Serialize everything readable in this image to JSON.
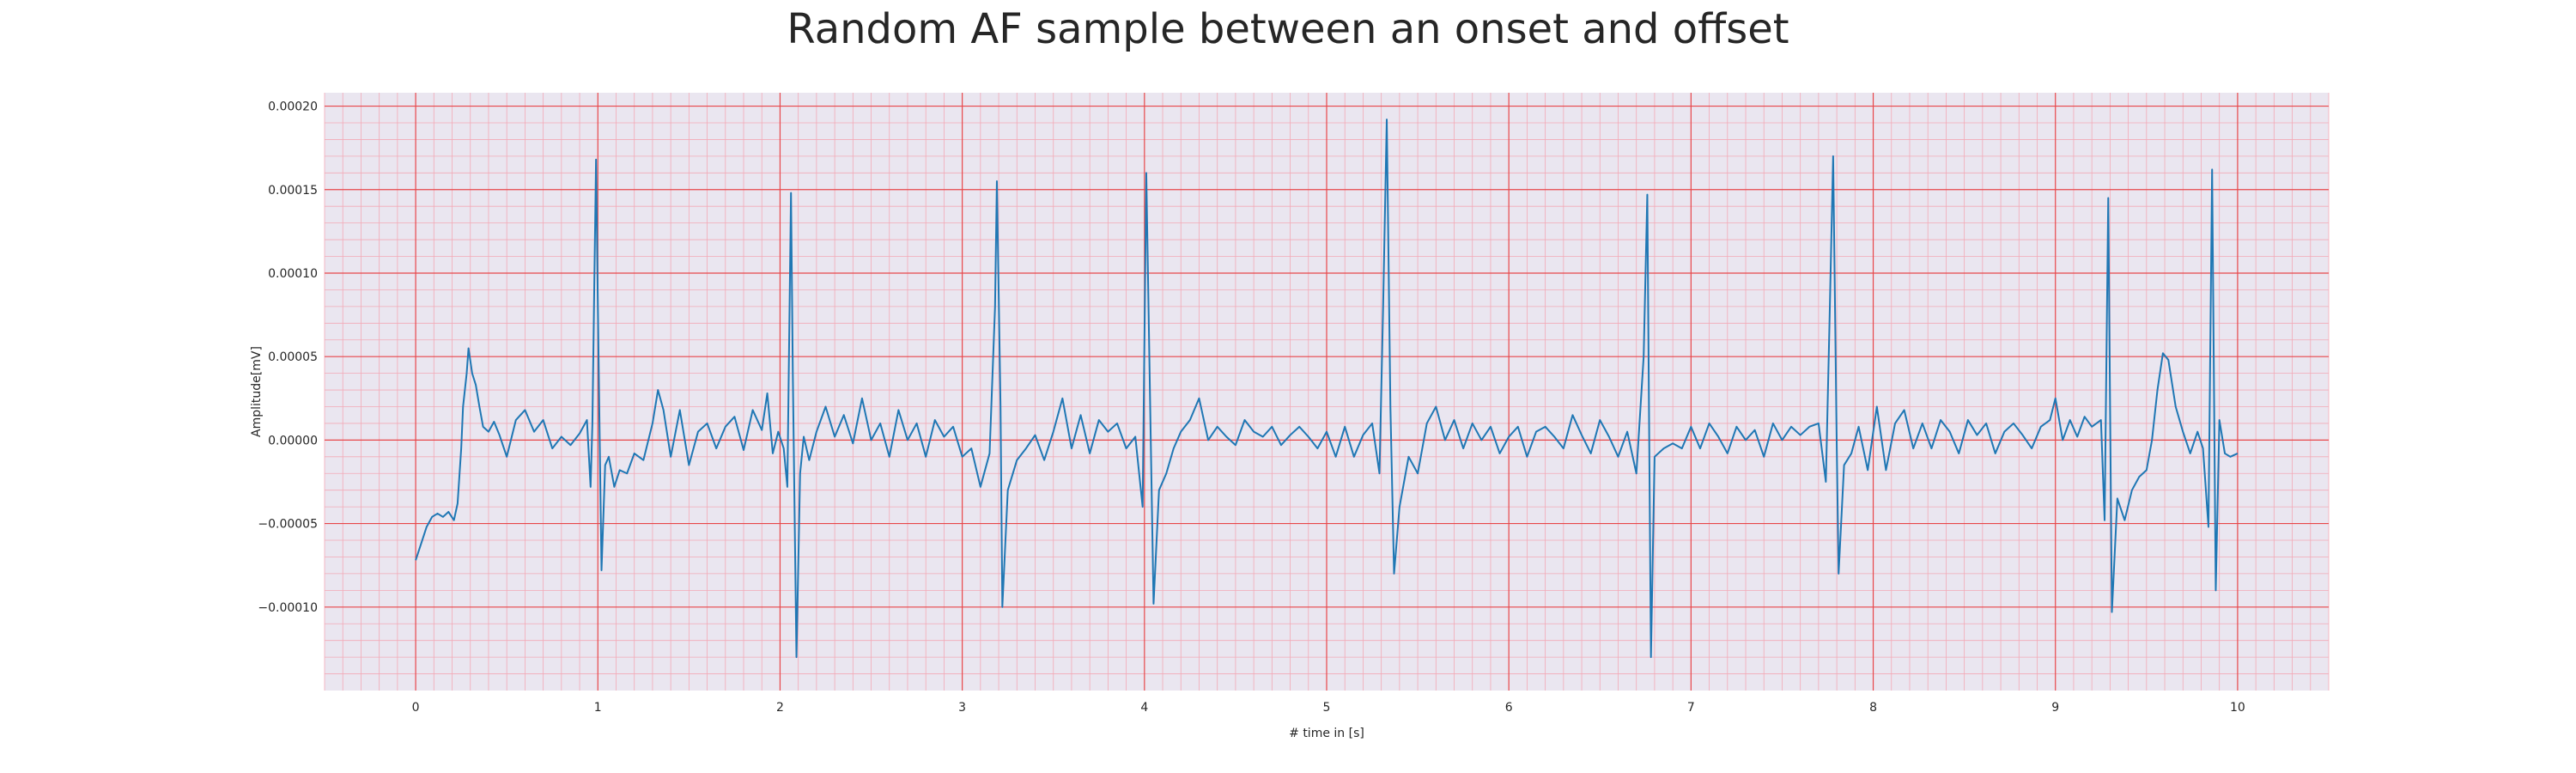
{
  "chart_data": {
    "type": "line",
    "title": "Random AF sample between an onset and offset",
    "xlabel": "# time in [s]",
    "ylabel": "Amplitude[mV]",
    "xlim": [
      -0.5,
      10.5
    ],
    "ylim": [
      -0.00015,
      0.000208
    ],
    "x_ticks": [
      0,
      1,
      2,
      3,
      4,
      5,
      6,
      7,
      8,
      9,
      10
    ],
    "y_ticks": [
      -0.0001,
      -5e-05,
      0.0,
      5e-05,
      0.0001,
      0.00015,
      0.0002
    ],
    "y_tick_labels": [
      "−0.00010",
      "−0.00005",
      "0.00000",
      "0.00005",
      "0.00010",
      "0.00015",
      "0.00020"
    ],
    "x_tick_labels": [
      "0",
      "1",
      "2",
      "3",
      "4",
      "5",
      "6",
      "7",
      "8",
      "9",
      "10"
    ],
    "grid": true,
    "background_color": "#eae6f0",
    "major_grid_color": "#e8474a",
    "minor_grid_color": "#f3a9b6",
    "line_color": "#1f77b4",
    "series": [
      {
        "name": "",
        "points": [
          [
            0.0,
            -7.2e-05
          ],
          [
            0.03,
            -6.2e-05
          ],
          [
            0.06,
            -5.2e-05
          ],
          [
            0.09,
            -4.6e-05
          ],
          [
            0.12,
            -4.4e-05
          ],
          [
            0.15,
            -4.6e-05
          ],
          [
            0.18,
            -4.3e-05
          ],
          [
            0.21,
            -4.8e-05
          ],
          [
            0.23,
            -3.8e-05
          ],
          [
            0.25,
            -5e-06
          ],
          [
            0.26,
            2e-05
          ],
          [
            0.28,
            4e-05
          ],
          [
            0.29,
            5.5e-05
          ],
          [
            0.31,
            4e-05
          ],
          [
            0.33,
            3.3e-05
          ],
          [
            0.35,
            2e-05
          ],
          [
            0.37,
            8e-06
          ],
          [
            0.4,
            5e-06
          ],
          [
            0.43,
            1.1e-05
          ],
          [
            0.46,
            3e-06
          ],
          [
            0.5,
            -1e-05
          ],
          [
            0.55,
            1.2e-05
          ],
          [
            0.6,
            1.8e-05
          ],
          [
            0.65,
            5e-06
          ],
          [
            0.7,
            1.2e-05
          ],
          [
            0.75,
            -5e-06
          ],
          [
            0.8,
            2e-06
          ],
          [
            0.85,
            -3e-06
          ],
          [
            0.9,
            4e-06
          ],
          [
            0.94,
            1.2e-05
          ],
          [
            0.96,
            -2.8e-05
          ],
          [
            0.97,
            1e-05
          ],
          [
            0.98,
            9e-05
          ],
          [
            0.99,
            0.000168
          ],
          [
            1.0,
            8e-05
          ],
          [
            1.02,
            -7.8e-05
          ],
          [
            1.04,
            -1.5e-05
          ],
          [
            1.06,
            -1e-05
          ],
          [
            1.09,
            -2.8e-05
          ],
          [
            1.12,
            -1.8e-05
          ],
          [
            1.16,
            -2e-05
          ],
          [
            1.2,
            -8e-06
          ],
          [
            1.25,
            -1.2e-05
          ],
          [
            1.3,
            1e-05
          ],
          [
            1.33,
            3e-05
          ],
          [
            1.36,
            1.8e-05
          ],
          [
            1.4,
            -1e-05
          ],
          [
            1.45,
            1.8e-05
          ],
          [
            1.5,
            -1.5e-05
          ],
          [
            1.55,
            5e-06
          ],
          [
            1.6,
            1e-05
          ],
          [
            1.65,
            -5e-06
          ],
          [
            1.7,
            8e-06
          ],
          [
            1.75,
            1.4e-05
          ],
          [
            1.8,
            -6e-06
          ],
          [
            1.85,
            1.8e-05
          ],
          [
            1.9,
            6e-06
          ],
          [
            1.93,
            2.8e-05
          ],
          [
            1.96,
            -8e-06
          ],
          [
            1.99,
            5e-06
          ],
          [
            2.02,
            -5e-06
          ],
          [
            2.04,
            -2.8e-05
          ],
          [
            2.05,
            6e-05
          ],
          [
            2.06,
            0.000148
          ],
          [
            2.07,
            4e-05
          ],
          [
            2.09,
            -0.00013
          ],
          [
            2.11,
            -2e-05
          ],
          [
            2.13,
            2e-06
          ],
          [
            2.16,
            -1.2e-05
          ],
          [
            2.2,
            5e-06
          ],
          [
            2.25,
            2e-05
          ],
          [
            2.3,
            2e-06
          ],
          [
            2.35,
            1.5e-05
          ],
          [
            2.4,
            -2e-06
          ],
          [
            2.45,
            2.5e-05
          ],
          [
            2.5,
            0.0
          ],
          [
            2.55,
            1e-05
          ],
          [
            2.6,
            -1e-05
          ],
          [
            2.65,
            1.8e-05
          ],
          [
            2.7,
            0.0
          ],
          [
            2.75,
            1e-05
          ],
          [
            2.8,
            -1e-05
          ],
          [
            2.85,
            1.2e-05
          ],
          [
            2.9,
            2e-06
          ],
          [
            2.95,
            8e-06
          ],
          [
            3.0,
            -1e-05
          ],
          [
            3.05,
            -5e-06
          ],
          [
            3.1,
            -2.8e-05
          ],
          [
            3.15,
            -8e-06
          ],
          [
            3.18,
            8e-05
          ],
          [
            3.19,
            0.000155
          ],
          [
            3.21,
            2e-05
          ],
          [
            3.22,
            -0.0001
          ],
          [
            3.25,
            -3e-05
          ],
          [
            3.3,
            -1.2e-05
          ],
          [
            3.35,
            -5e-06
          ],
          [
            3.4,
            3e-06
          ],
          [
            3.45,
            -1.2e-05
          ],
          [
            3.5,
            5e-06
          ],
          [
            3.55,
            2.5e-05
          ],
          [
            3.6,
            -5e-06
          ],
          [
            3.65,
            1.5e-05
          ],
          [
            3.7,
            -8e-06
          ],
          [
            3.75,
            1.2e-05
          ],
          [
            3.8,
            5e-06
          ],
          [
            3.85,
            1e-05
          ],
          [
            3.9,
            -5e-06
          ],
          [
            3.95,
            2e-06
          ],
          [
            3.99,
            -4e-05
          ],
          [
            4.01,
            0.00016
          ],
          [
            4.03,
            3e-05
          ],
          [
            4.05,
            -9.8e-05
          ],
          [
            4.08,
            -3e-05
          ],
          [
            4.12,
            -2e-05
          ],
          [
            4.16,
            -5e-06
          ],
          [
            4.2,
            5e-06
          ],
          [
            4.25,
            1.2e-05
          ],
          [
            4.3,
            2.5e-05
          ],
          [
            4.35,
            0.0
          ],
          [
            4.4,
            8e-06
          ],
          [
            4.45,
            2e-06
          ],
          [
            4.5,
            -3e-06
          ],
          [
            4.55,
            1.2e-05
          ],
          [
            4.6,
            5e-06
          ],
          [
            4.65,
            2e-06
          ],
          [
            4.7,
            8e-06
          ],
          [
            4.75,
            -3e-06
          ],
          [
            4.8,
            3e-06
          ],
          [
            4.85,
            8e-06
          ],
          [
            4.9,
            2e-06
          ],
          [
            4.95,
            -5e-06
          ],
          [
            5.0,
            5e-06
          ],
          [
            5.05,
            -1e-05
          ],
          [
            5.1,
            8e-06
          ],
          [
            5.15,
            -1e-05
          ],
          [
            5.2,
            3e-06
          ],
          [
            5.25,
            1e-05
          ],
          [
            5.29,
            -2e-05
          ],
          [
            5.31,
            8e-05
          ],
          [
            5.33,
            0.000192
          ],
          [
            5.35,
            2e-05
          ],
          [
            5.37,
            -8e-05
          ],
          [
            5.4,
            -4e-05
          ],
          [
            5.45,
            -1e-05
          ],
          [
            5.5,
            -2e-05
          ],
          [
            5.55,
            1e-05
          ],
          [
            5.6,
            2e-05
          ],
          [
            5.65,
            0.0
          ],
          [
            5.7,
            1.2e-05
          ],
          [
            5.75,
            -5e-06
          ],
          [
            5.8,
            1e-05
          ],
          [
            5.85,
            0.0
          ],
          [
            5.9,
            8e-06
          ],
          [
            5.95,
            -8e-06
          ],
          [
            6.0,
            2e-06
          ],
          [
            6.05,
            8e-06
          ],
          [
            6.1,
            -1e-05
          ],
          [
            6.15,
            5e-06
          ],
          [
            6.2,
            8e-06
          ],
          [
            6.25,
            2e-06
          ],
          [
            6.3,
            -5e-06
          ],
          [
            6.35,
            1.5e-05
          ],
          [
            6.4,
            3e-06
          ],
          [
            6.45,
            -8e-06
          ],
          [
            6.5,
            1.2e-05
          ],
          [
            6.55,
            2e-06
          ],
          [
            6.6,
            -1e-05
          ],
          [
            6.65,
            5e-06
          ],
          [
            6.7,
            -2e-05
          ],
          [
            6.74,
            5e-05
          ],
          [
            6.76,
            0.000147
          ],
          [
            6.78,
            -0.00013
          ],
          [
            6.8,
            -1e-05
          ],
          [
            6.85,
            -5e-06
          ],
          [
            6.9,
            -2e-06
          ],
          [
            6.95,
            -5e-06
          ],
          [
            7.0,
            8e-06
          ],
          [
            7.05,
            -5e-06
          ],
          [
            7.1,
            1e-05
          ],
          [
            7.15,
            2e-06
          ],
          [
            7.2,
            -8e-06
          ],
          [
            7.25,
            8e-06
          ],
          [
            7.3,
            0.0
          ],
          [
            7.35,
            6e-06
          ],
          [
            7.4,
            -1e-05
          ],
          [
            7.45,
            1e-05
          ],
          [
            7.5,
            0.0
          ],
          [
            7.55,
            8e-06
          ],
          [
            7.6,
            3e-06
          ],
          [
            7.65,
            8e-06
          ],
          [
            7.7,
            1e-05
          ],
          [
            7.74,
            -2.5e-05
          ],
          [
            7.76,
            7e-05
          ],
          [
            7.78,
            0.00017
          ],
          [
            7.8,
            -5e-06
          ],
          [
            7.81,
            -8e-05
          ],
          [
            7.84,
            -1.5e-05
          ],
          [
            7.88,
            -8e-06
          ],
          [
            7.92,
            8e-06
          ],
          [
            7.97,
            -1.8e-05
          ],
          [
            8.02,
            2e-05
          ],
          [
            8.07,
            -1.8e-05
          ],
          [
            8.12,
            1e-05
          ],
          [
            8.17,
            1.8e-05
          ],
          [
            8.22,
            -5e-06
          ],
          [
            8.27,
            1e-05
          ],
          [
            8.32,
            -5e-06
          ],
          [
            8.37,
            1.2e-05
          ],
          [
            8.42,
            5e-06
          ],
          [
            8.47,
            -8e-06
          ],
          [
            8.52,
            1.2e-05
          ],
          [
            8.57,
            3e-06
          ],
          [
            8.62,
            1e-05
          ],
          [
            8.67,
            -8e-06
          ],
          [
            8.72,
            5e-06
          ],
          [
            8.77,
            1e-05
          ],
          [
            8.82,
            3e-06
          ],
          [
            8.87,
            -5e-06
          ],
          [
            8.92,
            8e-06
          ],
          [
            8.97,
            1.2e-05
          ],
          [
            9.0,
            2.5e-05
          ],
          [
            9.04,
            0.0
          ],
          [
            9.08,
            1.2e-05
          ],
          [
            9.12,
            2e-06
          ],
          [
            9.16,
            1.4e-05
          ],
          [
            9.2,
            8e-06
          ],
          [
            9.25,
            1.2e-05
          ],
          [
            9.27,
            -4.8e-05
          ],
          [
            9.29,
            0.000145
          ],
          [
            9.31,
            -0.000103
          ],
          [
            9.34,
            -3.5e-05
          ],
          [
            9.38,
            -4.8e-05
          ],
          [
            9.42,
            -3e-05
          ],
          [
            9.46,
            -2.2e-05
          ],
          [
            9.5,
            -1.8e-05
          ],
          [
            9.53,
            0.0
          ],
          [
            9.56,
            3e-05
          ],
          [
            9.59,
            5.2e-05
          ],
          [
            9.62,
            4.8e-05
          ],
          [
            9.66,
            2e-05
          ],
          [
            9.7,
            5e-06
          ],
          [
            9.74,
            -8e-06
          ],
          [
            9.78,
            5e-06
          ],
          [
            9.81,
            -5e-06
          ],
          [
            9.84,
            -5.2e-05
          ],
          [
            9.86,
            0.000162
          ],
          [
            9.88,
            -9e-05
          ],
          [
            9.9,
            1.2e-05
          ],
          [
            9.93,
            -8e-06
          ],
          [
            9.96,
            -1e-05
          ],
          [
            10.0,
            -8e-06
          ]
        ]
      }
    ]
  }
}
